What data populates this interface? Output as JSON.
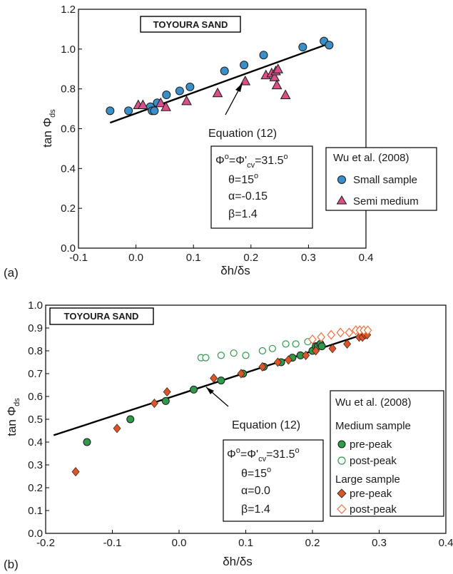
{
  "chart_data": [
    {
      "panel": "(a)",
      "type": "scatter",
      "title": "TOYOURA SAND",
      "xlabel": "δh/δs",
      "ylabel": "tan Φds",
      "xlim": [
        -0.1,
        0.4
      ],
      "ylim": [
        0.0,
        1.2
      ],
      "x_ticks": [
        "-0.1",
        "0.0",
        "0.1",
        "0.2",
        "0.3",
        "0.4"
      ],
      "y_ticks": [
        "0.0",
        "0.2",
        "0.4",
        "0.6",
        "0.8",
        "1.0",
        "1.2"
      ],
      "grid": false,
      "legend": {
        "placement": "bottom-right",
        "title": "Wu et al. (2008)",
        "items": [
          "Small sample",
          "Semi medium"
        ]
      },
      "parameters": [
        "Φo=Φ'cv=31.5o",
        "θ=15o",
        "α=-0.15",
        "β=1.4"
      ],
      "annotation": "Equation (12)",
      "series": [
        {
          "name": "Small sample",
          "marker": "circle",
          "color": "#3a8fc7",
          "points": [
            [
              -0.045,
              0.69
            ],
            [
              -0.013,
              0.69
            ],
            [
              0.025,
              0.71
            ],
            [
              0.028,
              0.69
            ],
            [
              0.032,
              0.69
            ],
            [
              0.037,
              0.73
            ],
            [
              0.053,
              0.77
            ],
            [
              0.076,
              0.79
            ],
            [
              0.094,
              0.81
            ],
            [
              0.154,
              0.89
            ],
            [
              0.188,
              0.92
            ],
            [
              0.222,
              0.97
            ],
            [
              0.29,
              1.01
            ],
            [
              0.327,
              1.04
            ],
            [
              0.336,
              1.02
            ]
          ]
        },
        {
          "name": "Semi medium",
          "marker": "triangle",
          "color": "#d94f87",
          "points": [
            [
              0.004,
              0.72
            ],
            [
              0.012,
              0.72
            ],
            [
              0.043,
              0.73
            ],
            [
              0.052,
              0.71
            ],
            [
              0.088,
              0.74
            ],
            [
              0.142,
              0.78
            ],
            [
              0.19,
              0.84
            ],
            [
              0.226,
              0.87
            ],
            [
              0.236,
              0.88
            ],
            [
              0.241,
              0.86
            ],
            [
              0.243,
              0.89
            ],
            [
              0.247,
              0.9
            ],
            [
              0.245,
              0.82
            ],
            [
              0.26,
              0.77
            ]
          ]
        },
        {
          "name": "Equation (12)",
          "type": "line",
          "color": "#000000",
          "points": [
            [
              -0.045,
              0.63
            ],
            [
              0.338,
              1.03
            ]
          ]
        }
      ]
    },
    {
      "panel": "(b)",
      "type": "scatter",
      "title": "TOYOURA SAND",
      "xlabel": "δh/δs",
      "ylabel": "tan Φds",
      "xlim": [
        -0.2,
        0.4
      ],
      "ylim": [
        0.0,
        1.0
      ],
      "x_ticks": [
        "-0.2",
        "-0.1",
        "0.0",
        "0.1",
        "0.2",
        "0.3",
        "0.4"
      ],
      "y_ticks": [
        "0.0",
        "0.1",
        "0.2",
        "0.3",
        "0.4",
        "0.5",
        "0.6",
        "0.7",
        "0.8",
        "0.9",
        "1.0"
      ],
      "grid": false,
      "legend": {
        "placement": "bottom-right",
        "title": "Wu et al. (2008)",
        "groups": [
          {
            "heading": "Medium sample",
            "items": [
              "pre-peak",
              "post-peak"
            ]
          },
          {
            "heading": "Large sample",
            "items": [
              "pre-peak",
              "post-peak"
            ]
          }
        ]
      },
      "parameters": [
        "Φo=Φ'cv=31.5o",
        "θ=15o",
        "α=0.0",
        "β=1.4"
      ],
      "annotation": "Equation (12)",
      "series": [
        {
          "name": "Medium sample pre-peak",
          "marker": "circle-filled",
          "color": "#2e9a4a",
          "points": [
            [
              -0.138,
              0.4
            ],
            [
              -0.073,
              0.5
            ],
            [
              -0.02,
              0.58
            ],
            [
              0.022,
              0.63
            ],
            [
              0.063,
              0.67
            ],
            [
              0.096,
              0.7
            ],
            [
              0.127,
              0.73
            ],
            [
              0.153,
              0.75
            ],
            [
              0.17,
              0.77
            ],
            [
              0.182,
              0.78
            ],
            [
              0.2,
              0.8
            ],
            [
              0.205,
              0.82
            ],
            [
              0.208,
              0.82
            ],
            [
              0.212,
              0.83
            ],
            [
              0.214,
              0.82
            ]
          ]
        },
        {
          "name": "Medium sample post-peak",
          "marker": "circle-open",
          "color": "#2e9a4a",
          "points": [
            [
              0.033,
              0.77
            ],
            [
              0.04,
              0.77
            ],
            [
              0.063,
              0.78
            ],
            [
              0.082,
              0.79
            ],
            [
              0.1,
              0.78
            ],
            [
              0.125,
              0.8
            ],
            [
              0.14,
              0.81
            ],
            [
              0.16,
              0.83
            ],
            [
              0.175,
              0.83
            ],
            [
              0.193,
              0.84
            ]
          ]
        },
        {
          "name": "Large sample pre-peak",
          "marker": "diamond-filled",
          "color": "#d9552a",
          "points": [
            [
              -0.155,
              0.27
            ],
            [
              -0.093,
              0.46
            ],
            [
              -0.037,
              0.57
            ],
            [
              -0.018,
              0.62
            ],
            [
              0.052,
              0.68
            ],
            [
              0.093,
              0.7
            ],
            [
              0.125,
              0.73
            ],
            [
              0.148,
              0.75
            ],
            [
              0.164,
              0.76
            ],
            [
              0.19,
              0.78
            ],
            [
              0.205,
              0.8
            ],
            [
              0.23,
              0.81
            ],
            [
              0.252,
              0.83
            ],
            [
              0.27,
              0.86
            ],
            [
              0.275,
              0.86
            ],
            [
              0.279,
              0.87
            ],
            [
              0.282,
              0.87
            ]
          ]
        },
        {
          "name": "Large sample post-peak",
          "marker": "diamond-open",
          "color": "#f0703a",
          "points": [
            [
              0.2,
              0.85
            ],
            [
              0.213,
              0.86
            ],
            [
              0.228,
              0.87
            ],
            [
              0.242,
              0.88
            ],
            [
              0.255,
              0.88
            ],
            [
              0.265,
              0.89
            ],
            [
              0.271,
              0.89
            ],
            [
              0.277,
              0.89
            ],
            [
              0.283,
              0.89
            ]
          ]
        },
        {
          "name": "Equation (12)",
          "type": "line",
          "color": "#000000",
          "points": [
            [
              -0.188,
              0.43
            ],
            [
              0.285,
              0.88
            ]
          ]
        }
      ]
    }
  ]
}
